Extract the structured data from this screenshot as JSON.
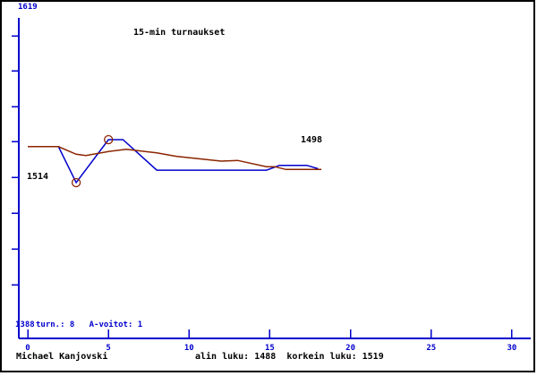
{
  "window": {
    "background": "#ffffff",
    "border_color": "#000000"
  },
  "colors": {
    "blue": "#0000CC",
    "line_rating": "#0000CC",
    "line_average": "#8B2500",
    "text_black": "#000000"
  },
  "labels": {
    "title": "15-min turnaukset",
    "y_axis_max": "1619",
    "y_axis_min": "1388",
    "start_rating": "1514",
    "final_rating": "1498",
    "stats_line": "turn.: 8   A-voitot: 1",
    "player_name": "Michael Kanjovski",
    "summary": "alin luku: 1488  korkein luku: 1519"
  },
  "chart_data": {
    "type": "line",
    "title": "15-min turnaukset",
    "xlabel": "",
    "ylabel": "",
    "x_axis": {
      "min": 0,
      "max": 30,
      "ticks": [
        0,
        5,
        10,
        15,
        20,
        25,
        30
      ]
    },
    "y_axis": {
      "top_label": 1619,
      "bottom_label": 1388,
      "grid": false
    },
    "legend": "none",
    "series": [
      {
        "name": "rating",
        "color": "#0000CC",
        "points": [
          [
            0,
            1514
          ],
          [
            1.9,
            1514
          ],
          [
            3,
            1488
          ],
          [
            5,
            1519
          ],
          [
            5.9,
            1519
          ],
          [
            8,
            1497
          ],
          [
            14.8,
            1497
          ],
          [
            15.6,
            1500.5
          ],
          [
            17.3,
            1500.5
          ],
          [
            18,
            1498
          ]
        ]
      },
      {
        "name": "running-average",
        "color": "#8B2500",
        "points": [
          [
            0,
            1514
          ],
          [
            1.9,
            1514
          ],
          [
            3,
            1508.5
          ],
          [
            3.6,
            1507.5
          ],
          [
            5,
            1510.5
          ],
          [
            6.1,
            1512
          ],
          [
            8,
            1509.5
          ],
          [
            9.2,
            1507
          ],
          [
            12,
            1503.5
          ],
          [
            13,
            1504
          ],
          [
            14.8,
            1499.5
          ],
          [
            15.3,
            1499.5
          ],
          [
            16,
            1497.5
          ],
          [
            18.2,
            1497.5
          ]
        ]
      }
    ],
    "markers": [
      {
        "name": "lowest-point",
        "x": 3,
        "y": 1488
      },
      {
        "name": "highest-point",
        "x": 5,
        "y": 1519
      }
    ],
    "stats": {
      "tournaments": 8,
      "a_wins": 1,
      "lowest": 1488,
      "highest": 1519,
      "final": 1498,
      "start": 1514
    }
  }
}
